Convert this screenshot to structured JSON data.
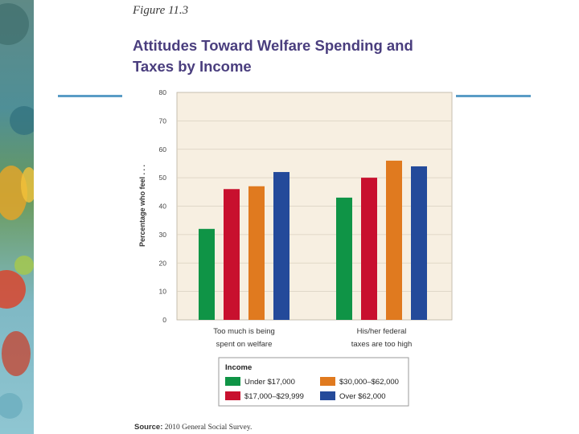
{
  "figure_label": "Figure 11.3",
  "title_line1": "Attitudes Toward Welfare Spending and",
  "title_line2": "Taxes by Income",
  "source_label": "Source:",
  "source_text": "2010 General Social Survey.",
  "colors": {
    "title": "#4a3e7e",
    "rule": "#5a9cc6",
    "plot_bg": "#f7efe1",
    "grid": "#d9d0bf"
  },
  "chart_data": {
    "type": "bar",
    "title": "Attitudes Toward Welfare Spending and Taxes by Income",
    "xlabel": "",
    "ylabel": "Percentage who feel . . .",
    "ylim": [
      0,
      80
    ],
    "yticks": [
      "0",
      "10",
      "20",
      "30",
      "40",
      "50",
      "60",
      "70",
      "80"
    ],
    "grid": true,
    "categories": [
      [
        "Too much is being",
        "spent on welfare"
      ],
      [
        "His/her federal",
        "taxes are too high"
      ]
    ],
    "series": [
      {
        "name": "Under $17,000",
        "color": "#0f9446",
        "values": [
          32,
          43
        ]
      },
      {
        "name": "$17,000–$29,999",
        "color": "#c8102e",
        "values": [
          46,
          50
        ]
      },
      {
        "name": "$30,000–$62,000",
        "color": "#e07a1f",
        "values": [
          47,
          56
        ]
      },
      {
        "name": "Over $62,000",
        "color": "#244a9a",
        "values": [
          52,
          54
        ]
      }
    ],
    "legend": {
      "title": "Income",
      "placement": "bottom",
      "order": [
        0,
        2,
        1,
        3
      ]
    }
  }
}
